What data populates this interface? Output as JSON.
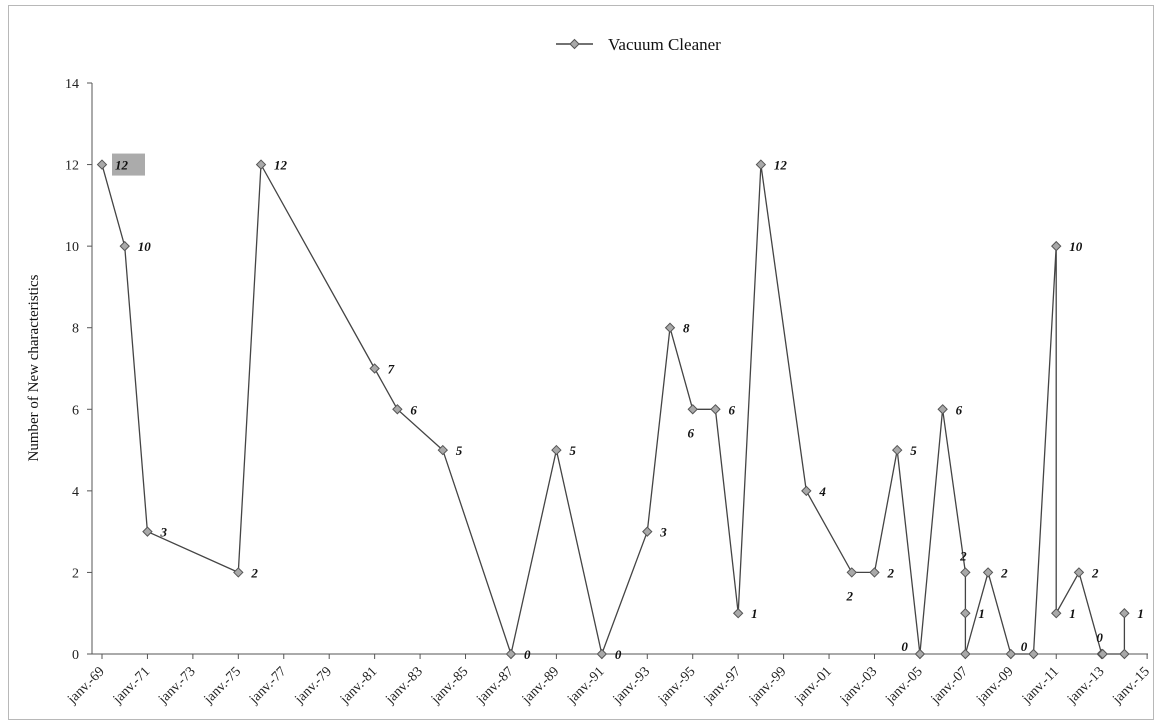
{
  "chart_data": {
    "type": "line",
    "title": "",
    "xlabel": "",
    "ylabel": "Number of New characteristics",
    "ylim": [
      0,
      14
    ],
    "yticks": [
      "0",
      "2",
      "4",
      "6",
      "8",
      "10",
      "12",
      "14"
    ],
    "x_tick_labels": [
      "janv.-69",
      "janv.-71",
      "janv.-73",
      "janv.-75",
      "janv.-77",
      "janv.-79",
      "janv.-81",
      "janv.-83",
      "janv.-85",
      "janv.-87",
      "janv.-89",
      "janv.-91",
      "janv.-93",
      "janv.-95",
      "janv.-97",
      "janv.-99",
      "janv.-01",
      "janv.-03",
      "janv.-05",
      "janv.-07",
      "janv.-09",
      "janv.-11",
      "janv.-13",
      "janv.-15"
    ],
    "legend_position": "top-center",
    "grid": false,
    "series": [
      {
        "name": "Vacuum Cleaner",
        "color": "#444444",
        "marker_color": "#a9a9a9",
        "points": [
          {
            "x": "janv.-69",
            "y": 12,
            "label": "12",
            "highlight": true
          },
          {
            "x": "janv.-70",
            "y": 10,
            "label": "10"
          },
          {
            "x": "janv.-71",
            "y": 3,
            "label": "3"
          },
          {
            "x": "janv.-75",
            "y": 2,
            "label": "2"
          },
          {
            "x": "janv.-76",
            "y": 12,
            "label": "12"
          },
          {
            "x": "janv.-81",
            "y": 7,
            "label": "7"
          },
          {
            "x": "janv.-82",
            "y": 6,
            "label": "6"
          },
          {
            "x": "janv.-84",
            "y": 5,
            "label": "5"
          },
          {
            "x": "janv.-87",
            "y": 0,
            "label": "0"
          },
          {
            "x": "janv.-89",
            "y": 5,
            "label": "5"
          },
          {
            "x": "janv.-91",
            "y": 0,
            "label": "0"
          },
          {
            "x": "janv.-93",
            "y": 3,
            "label": "3"
          },
          {
            "x": "janv.-94",
            "y": 8,
            "label": "8"
          },
          {
            "x": "janv.-95",
            "y": 6,
            "label": "6",
            "label_pos": "below"
          },
          {
            "x": "janv.-96",
            "y": 6,
            "label": "6"
          },
          {
            "x": "janv.-97",
            "y": 1,
            "label": "1"
          },
          {
            "x": "janv.-98",
            "y": 12,
            "label": "12"
          },
          {
            "x": "janv.-00",
            "y": 4,
            "label": "4"
          },
          {
            "x": "janv.-02",
            "y": 2,
            "label": "2",
            "label_pos": "below"
          },
          {
            "x": "janv.-03",
            "y": 2,
            "label": "2"
          },
          {
            "x": "janv.-04",
            "y": 5,
            "label": "5"
          },
          {
            "x": "janv.-05",
            "y": 0,
            "label": "0",
            "label_pos": "upper-left"
          },
          {
            "x": "janv.-06",
            "y": 6,
            "label": "6"
          },
          {
            "x": "janv.-07",
            "y": 2,
            "label": "2",
            "label_pos": "above"
          },
          {
            "x": "janv.-07",
            "y": 1,
            "label": "1"
          },
          {
            "x": "janv.-07",
            "y": 0,
            "label": ""
          },
          {
            "x": "janv.-08",
            "y": 2,
            "label": "2"
          },
          {
            "x": "janv.-09",
            "y": 0,
            "label": "0",
            "label_pos": "upper-right"
          },
          {
            "x": "janv.-10",
            "y": 0,
            "label": ""
          },
          {
            "x": "janv.-11",
            "y": 10,
            "label": "10"
          },
          {
            "x": "janv.-11",
            "y": 1,
            "label": "1"
          },
          {
            "x": "janv.-12",
            "y": 2,
            "label": "2"
          },
          {
            "x": "janv.-13",
            "y": 0,
            "label": "0",
            "label_pos": "above"
          },
          {
            "x": "janv.-13",
            "y": 0,
            "label": ""
          },
          {
            "x": "janv.-14",
            "y": 0,
            "label": ""
          },
          {
            "x": "janv.-14",
            "y": 1,
            "label": "1"
          }
        ]
      }
    ]
  }
}
